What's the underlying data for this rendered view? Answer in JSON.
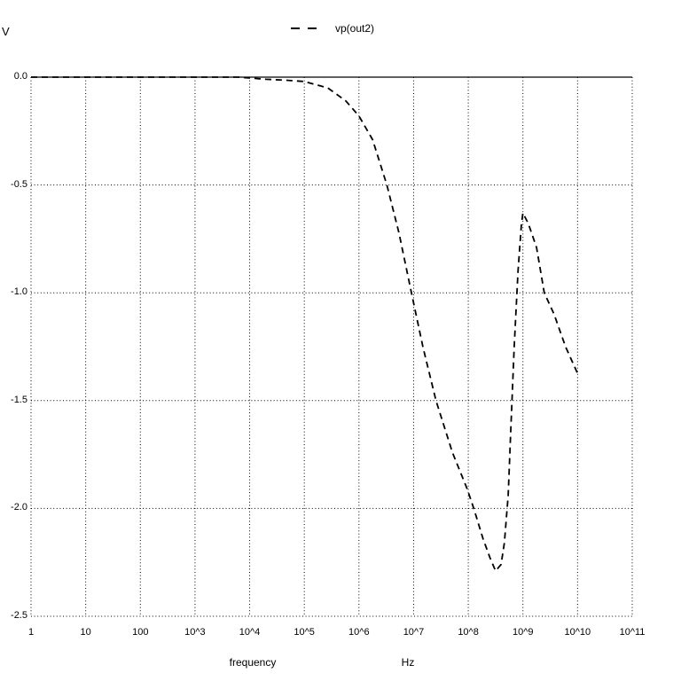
{
  "window": {
    "unit_label": "V"
  },
  "legend": {
    "series_label": "vp(out2)"
  },
  "axes": {
    "x_label_left": "frequency",
    "x_label_unit": "Hz",
    "x_ticks": [
      "1",
      "10",
      "100",
      "10^3",
      "10^4",
      "10^5",
      "10^6",
      "10^7",
      "10^8",
      "10^9",
      "10^10",
      "10^11"
    ],
    "y_ticks": [
      "0.0",
      "-0.5",
      "-1.0",
      "-1.5",
      "-2.0",
      "-2.5"
    ]
  },
  "colors": {
    "foreground": "#000000",
    "background": "#ffffff"
  },
  "chart_data": {
    "type": "line",
    "title": "",
    "xlabel": "frequency (Hz)",
    "ylabel": "V",
    "x_scale": "log10",
    "x_range_log10": [
      0,
      11
    ],
    "ylim": [
      -2.5,
      0
    ],
    "grid": "dotted",
    "zero_line": "solid",
    "legend_position": "top-center",
    "series": [
      {
        "name": "vp(out2)",
        "style": "dashed",
        "points_format": [
          "log10_frequency_hz",
          "value_v"
        ],
        "points": [
          [
            0.0,
            0.0
          ],
          [
            1.0,
            0.0
          ],
          [
            2.0,
            0.0
          ],
          [
            3.0,
            0.0
          ],
          [
            3.8,
            0.0
          ],
          [
            4.3,
            -0.01
          ],
          [
            4.7,
            -0.015
          ],
          [
            5.0,
            -0.02
          ],
          [
            5.43,
            -0.05
          ],
          [
            5.76,
            -0.11
          ],
          [
            6.0,
            -0.18
          ],
          [
            6.25,
            -0.29
          ],
          [
            6.51,
            -0.5
          ],
          [
            6.73,
            -0.72
          ],
          [
            6.96,
            -1.0
          ],
          [
            7.17,
            -1.25
          ],
          [
            7.41,
            -1.5
          ],
          [
            7.71,
            -1.74
          ],
          [
            7.98,
            -1.91
          ],
          [
            8.1,
            -2.0
          ],
          [
            8.27,
            -2.14
          ],
          [
            8.4,
            -2.23
          ],
          [
            8.5,
            -2.29
          ],
          [
            8.6,
            -2.26
          ],
          [
            8.66,
            -2.16
          ],
          [
            8.73,
            -1.94
          ],
          [
            8.78,
            -1.62
          ],
          [
            8.84,
            -1.25
          ],
          [
            8.91,
            -0.9
          ],
          [
            8.97,
            -0.69
          ],
          [
            9.0,
            -0.63
          ],
          [
            9.1,
            -0.68
          ],
          [
            9.25,
            -0.79
          ],
          [
            9.39,
            -1.0
          ],
          [
            9.57,
            -1.1
          ],
          [
            9.78,
            -1.25
          ],
          [
            10.01,
            -1.38
          ]
        ]
      }
    ]
  }
}
